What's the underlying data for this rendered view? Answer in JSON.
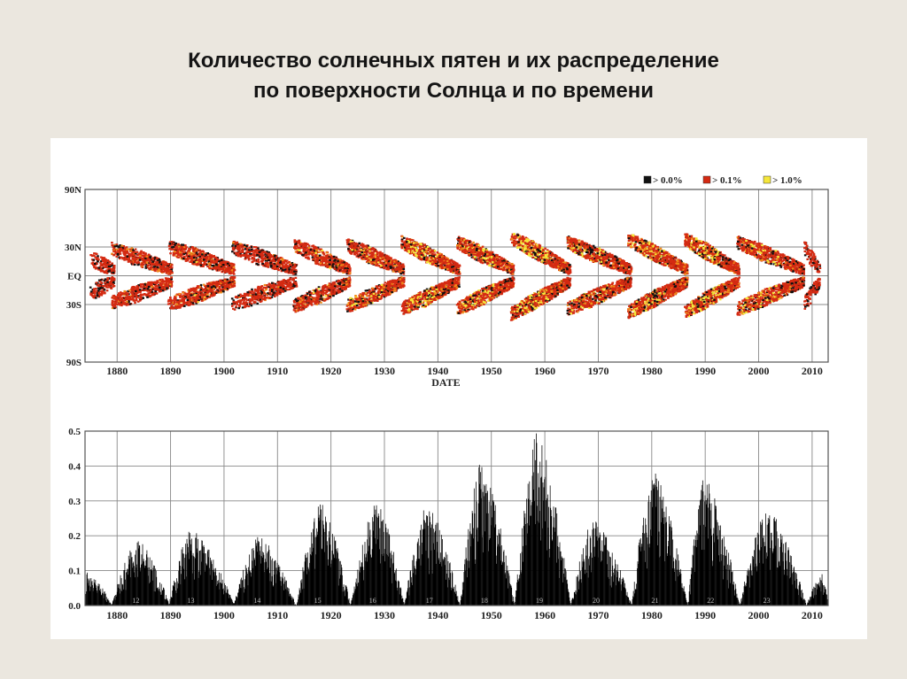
{
  "slide": {
    "title_line1": "Количество солнечных пятен и их распределение",
    "title_line2": "по поверхности Солнца и по времени"
  },
  "colors": {
    "background": "#ebe7df",
    "panel": "#ffffff",
    "grid": "#888888",
    "bin_low": "#111111",
    "bin_mid": "#d42a12",
    "bin_high": "#f5e63a",
    "bar": "#000000"
  },
  "chart_data": [
    {
      "type": "heatmap",
      "title": "",
      "xlabel": "DATE",
      "ylabel": "",
      "xlim": [
        1874,
        2013
      ],
      "ylim": [
        -90,
        90
      ],
      "x_ticks": [
        1880,
        1890,
        1900,
        1910,
        1920,
        1930,
        1940,
        1950,
        1960,
        1970,
        1980,
        1990,
        2000,
        2010
      ],
      "y_ticks": [
        {
          "value": 90,
          "label": "90N"
        },
        {
          "value": 30,
          "label": "30N"
        },
        {
          "value": 0,
          "label": "EQ"
        },
        {
          "value": -30,
          "label": "30S"
        },
        {
          "value": -90,
          "label": "90S"
        }
      ],
      "grid": true,
      "legend_position": "top-right",
      "legend": [
        {
          "label": "> 0.0%",
          "color": "#111111"
        },
        {
          "label": "> 0.1%",
          "color": "#d42a12"
        },
        {
          "label": "> 1.0%",
          "color": "#f5e63a"
        }
      ],
      "cycles": [
        {
          "start": 1875.0,
          "end": 1879.5,
          "max_latitude": 18,
          "intensity": 0.55
        },
        {
          "start": 1879.0,
          "end": 1890.3,
          "max_latitude": 28,
          "intensity": 0.7
        },
        {
          "start": 1889.6,
          "end": 1902.0,
          "max_latitude": 30,
          "intensity": 0.75
        },
        {
          "start": 1901.5,
          "end": 1913.6,
          "max_latitude": 30,
          "intensity": 0.6
        },
        {
          "start": 1913.0,
          "end": 1923.6,
          "max_latitude": 32,
          "intensity": 0.75
        },
        {
          "start": 1923.0,
          "end": 1933.7,
          "max_latitude": 32,
          "intensity": 0.8
        },
        {
          "start": 1933.2,
          "end": 1944.1,
          "max_latitude": 35,
          "intensity": 0.9
        },
        {
          "start": 1943.6,
          "end": 1954.2,
          "max_latitude": 35,
          "intensity": 0.92
        },
        {
          "start": 1953.7,
          "end": 1964.8,
          "max_latitude": 40,
          "intensity": 1.0
        },
        {
          "start": 1964.2,
          "end": 1976.2,
          "max_latitude": 35,
          "intensity": 0.85
        },
        {
          "start": 1975.6,
          "end": 1986.7,
          "max_latitude": 38,
          "intensity": 0.95
        },
        {
          "start": 1986.2,
          "end": 1996.4,
          "max_latitude": 38,
          "intensity": 0.95
        },
        {
          "start": 1996.0,
          "end": 2008.5,
          "max_latitude": 35,
          "intensity": 0.85
        },
        {
          "start": 2008.5,
          "end": 2011.5,
          "max_latitude": 30,
          "intensity": 0.55
        }
      ]
    },
    {
      "type": "bar",
      "title": "",
      "xlabel": "",
      "ylabel": "",
      "xlim": [
        1874,
        2013
      ],
      "ylim": [
        0.0,
        0.5
      ],
      "x_ticks": [
        1880,
        1890,
        1900,
        1910,
        1920,
        1930,
        1940,
        1950,
        1960,
        1970,
        1980,
        1990,
        2000,
        2010
      ],
      "y_ticks": [
        "0.0",
        "0.1",
        "0.2",
        "0.3",
        "0.4",
        "0.5"
      ],
      "grid": true,
      "cycle_numbers": [
        {
          "label": "12",
          "x": 1883.5
        },
        {
          "label": "13",
          "x": 1893.8
        },
        {
          "label": "14",
          "x": 1906.2
        },
        {
          "label": "15",
          "x": 1917.5
        },
        {
          "label": "16",
          "x": 1927.8
        },
        {
          "label": "17",
          "x": 1938.4
        },
        {
          "label": "18",
          "x": 1948.7
        },
        {
          "label": "19",
          "x": 1959.0
        },
        {
          "label": "20",
          "x": 1969.6
        },
        {
          "label": "21",
          "x": 1980.6
        },
        {
          "label": "22",
          "x": 1991.0
        },
        {
          "label": "23",
          "x": 2001.5
        }
      ],
      "cycles": [
        {
          "start": 1874.0,
          "end": 1879.0,
          "peak_year": 1874.3,
          "peak_value": 0.1
        },
        {
          "start": 1878.9,
          "end": 1889.8,
          "peak_year": 1883.8,
          "peak_value": 0.19
        },
        {
          "start": 1889.6,
          "end": 1901.9,
          "peak_year": 1893.7,
          "peak_value": 0.22
        },
        {
          "start": 1901.7,
          "end": 1913.4,
          "peak_year": 1906.5,
          "peak_value": 0.2
        },
        {
          "start": 1913.5,
          "end": 1923.6,
          "peak_year": 1917.8,
          "peak_value": 0.3
        },
        {
          "start": 1923.6,
          "end": 1933.7,
          "peak_year": 1928.5,
          "peak_value": 0.3
        },
        {
          "start": 1933.7,
          "end": 1944.1,
          "peak_year": 1937.8,
          "peak_value": 0.3
        },
        {
          "start": 1944.1,
          "end": 1954.3,
          "peak_year": 1947.8,
          "peak_value": 0.41
        },
        {
          "start": 1954.3,
          "end": 1964.8,
          "peak_year": 1958.4,
          "peak_value": 0.5
        },
        {
          "start": 1964.8,
          "end": 1976.2,
          "peak_year": 1969.0,
          "peak_value": 0.25
        },
        {
          "start": 1976.2,
          "end": 1986.7,
          "peak_year": 1980.1,
          "peak_value": 0.39
        },
        {
          "start": 1986.7,
          "end": 1996.4,
          "peak_year": 1989.7,
          "peak_value": 0.37
        },
        {
          "start": 1996.4,
          "end": 2008.9,
          "peak_year": 2001.6,
          "peak_value": 0.28
        },
        {
          "start": 2008.9,
          "end": 2013.0,
          "peak_year": 2011.8,
          "peak_value": 0.09
        }
      ]
    }
  ]
}
